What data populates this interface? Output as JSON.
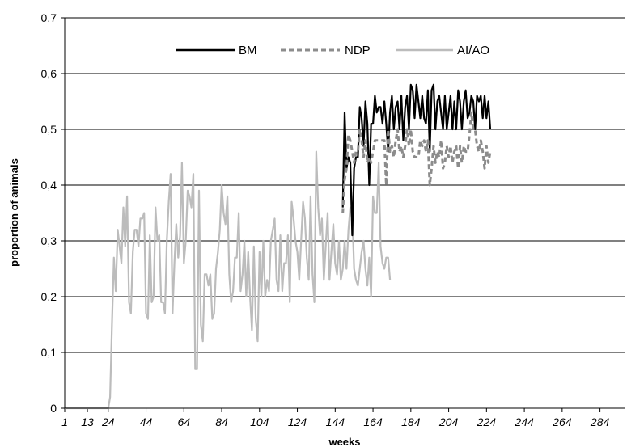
{
  "chart_data": {
    "type": "line",
    "xlabel": "weeks",
    "ylabel": "proportion of animals",
    "ylim": [
      0,
      0.7
    ],
    "y_ticks": [
      "0",
      "0,1",
      "0,2",
      "0,3",
      "0,4",
      "0,5",
      "0,6",
      "0,7"
    ],
    "x_ticks": [
      "1",
      "13",
      "24",
      "44",
      "64",
      "84",
      "104",
      "124",
      "144",
      "164",
      "184",
      "204",
      "224",
      "244",
      "264",
      "284"
    ],
    "x_ticks_weeks": [
      1,
      13,
      24,
      44,
      64,
      84,
      104,
      124,
      144,
      164,
      184,
      204,
      224,
      244,
      264,
      284
    ],
    "xlim": [
      1,
      297
    ],
    "grid": "horizontal",
    "legend_position": "top",
    "series": [
      {
        "name": "AI/AO",
        "color": "#bcbcbc",
        "dash": "solid",
        "x_start": 1,
        "values": [
          0,
          0,
          0,
          0,
          0,
          0,
          0,
          0,
          0,
          0,
          0,
          0,
          0,
          0,
          0,
          0,
          0,
          0,
          0,
          0,
          0,
          0,
          0,
          0,
          0.02,
          0.15,
          0.27,
          0.21,
          0.32,
          0.29,
          0.26,
          0.36,
          0.29,
          0.38,
          0.19,
          0.17,
          0.28,
          0.32,
          0.32,
          0.29,
          0.34,
          0.34,
          0.35,
          0.17,
          0.16,
          0.31,
          0.19,
          0.2,
          0.36,
          0.3,
          0.31,
          0.19,
          0.19,
          0.17,
          0.3,
          0.37,
          0.42,
          0.17,
          0.26,
          0.33,
          0.27,
          0.31,
          0.44,
          0.26,
          0.3,
          0.39,
          0.38,
          0.36,
          0.42,
          0.07,
          0.07,
          0.39,
          0.15,
          0.12,
          0.24,
          0.24,
          0.22,
          0.24,
          0.16,
          0.17,
          0.25,
          0.28,
          0.32,
          0.4,
          0.35,
          0.33,
          0.38,
          0.24,
          0.19,
          0.21,
          0.27,
          0.27,
          0.35,
          0.21,
          0.24,
          0.3,
          0.2,
          0.28,
          0.2,
          0.14,
          0.29,
          0.16,
          0.12,
          0.28,
          0.2,
          0.3,
          0.2,
          0.23,
          0.21,
          0.3,
          0.32,
          0.34,
          0.23,
          0.21,
          0.31,
          0.21,
          0.26,
          0.26,
          0.31,
          0.19,
          0.37,
          0.34,
          0.3,
          0.28,
          0.23,
          0.3,
          0.37,
          0.34,
          0.27,
          0.23,
          0.38,
          0.24,
          0.19,
          0.46,
          0.36,
          0.31,
          0.34,
          0.23,
          0.29,
          0.35,
          0.23,
          0.28,
          0.33,
          0.26,
          0.24,
          0.3,
          0.23,
          0.25,
          0.3,
          0.25,
          0.32,
          0.36,
          0.35,
          0.25,
          0.23,
          0.22,
          0.25,
          0.28,
          0.3,
          0.25,
          0.22,
          0.27,
          0.2,
          0.38,
          0.35,
          0.35,
          0.44,
          0.29,
          0.26,
          0.25,
          0.27,
          0.27,
          0.23
        ]
      },
      {
        "name": "BM",
        "color": "#000000",
        "dash": "solid",
        "x_start": 148,
        "values": [
          0.36,
          0.53,
          0.43,
          0.45,
          0.44,
          0.31,
          0.43,
          0.45,
          0.45,
          0.54,
          0.52,
          0.47,
          0.55,
          0.51,
          0.4,
          0.51,
          0.51,
          0.56,
          0.53,
          0.54,
          0.54,
          0.51,
          0.55,
          0.51,
          0.46,
          0.53,
          0.56,
          0.5,
          0.54,
          0.55,
          0.5,
          0.56,
          0.48,
          0.54,
          0.56,
          0.5,
          0.58,
          0.57,
          0.52,
          0.58,
          0.55,
          0.52,
          0.56,
          0.52,
          0.51,
          0.57,
          0.46,
          0.57,
          0.58,
          0.5,
          0.55,
          0.56,
          0.53,
          0.5,
          0.56,
          0.5,
          0.53,
          0.56,
          0.5,
          0.55,
          0.5,
          0.57,
          0.55,
          0.5,
          0.55,
          0.57,
          0.52,
          0.53,
          0.56,
          0.55,
          0.5,
          0.56,
          0.55,
          0.56,
          0.52,
          0.56,
          0.52,
          0.55,
          0.5
        ]
      },
      {
        "name": "NDP",
        "color": "#8c8c8c",
        "dash": "dashed",
        "x_start": 148,
        "values": [
          0.35,
          0.41,
          0.43,
          0.49,
          0.48,
          0.46,
          0.44,
          0.46,
          0.46,
          0.5,
          0.48,
          0.45,
          0.48,
          0.44,
          0.45,
          0.44,
          0.46,
          0.48,
          0.48,
          0.48,
          0.48,
          0.48,
          0.48,
          0.4,
          0.5,
          0.46,
          0.47,
          0.45,
          0.48,
          0.5,
          0.46,
          0.47,
          0.45,
          0.47,
          0.5,
          0.47,
          0.5,
          0.46,
          0.45,
          0.45,
          0.45,
          0.48,
          0.47,
          0.48,
          0.46,
          0.48,
          0.4,
          0.43,
          0.47,
          0.44,
          0.46,
          0.45,
          0.48,
          0.43,
          0.44,
          0.47,
          0.45,
          0.47,
          0.44,
          0.46,
          0.47,
          0.43,
          0.47,
          0.44,
          0.47,
          0.46,
          0.46,
          0.49,
          0.53,
          0.5,
          0.5,
          0.47,
          0.46,
          0.48,
          0.46,
          0.43,
          0.47,
          0.44,
          0.46
        ]
      }
    ]
  }
}
